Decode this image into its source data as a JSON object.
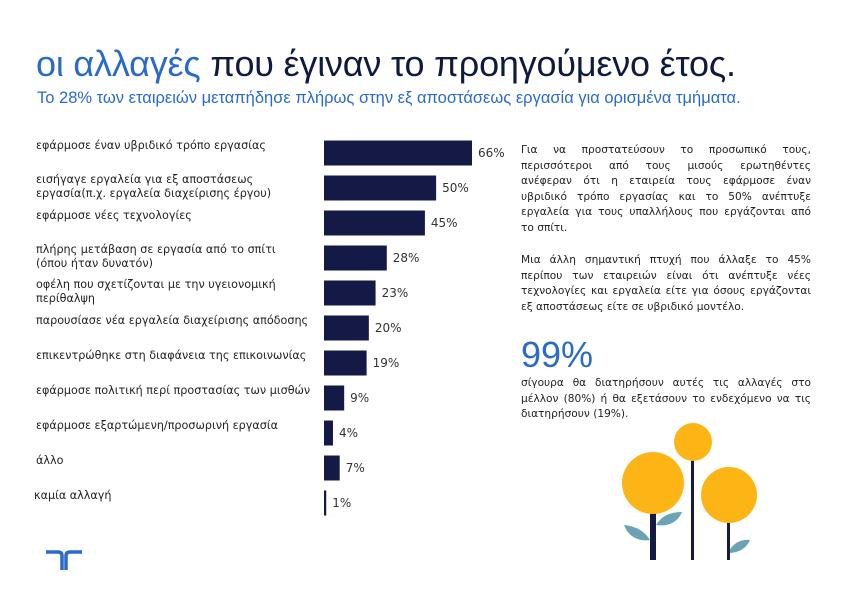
{
  "header": {
    "title_accent": "οι αλλαγές",
    "title_rest": " που έγιναν το προηγούμενο έτος.",
    "subtitle": "Το 28% των εταιρειών μεταπήδησε πλήρως στην εξ αποστάσεως εργασία για ορισμένα τμήματα."
  },
  "colors": {
    "bar": "#141a45",
    "accent": "#2a6ac8",
    "flower": "#fdb515",
    "leaf": "#6ba3b4"
  },
  "chart_data": {
    "type": "bar",
    "orientation": "horizontal",
    "title": "",
    "xlabel": "",
    "ylabel": "",
    "xlim": [
      0,
      100
    ],
    "categories": [
      [
        "εφάρμοσε έναν υβριδικό τρόπο εργασίας"
      ],
      [
        "εισήγαγε εργαλεία για εξ αποστάσεως",
        "εργασία(π.χ. εργαλεία διαχείρισης έργου)"
      ],
      [
        "εφάρμοσε νέες τεχνολογίες"
      ],
      [
        "πλήρης μετάβαση σε εργασία από το σπίτι",
        "(όπου ήταν δυνατόν)"
      ],
      [
        "οφέλη που σχετίζονται με την υγειονομική",
        "περίθαλψη"
      ],
      [
        "παρουσίασε νέα εργαλεία διαχείρισης απόδοσης"
      ],
      [
        "επικεντρώθηκε στη διαφάνεια της επικοινωνίας"
      ],
      [
        "εφάρμοσε πολιτική περί προστασίας των μισθών"
      ],
      [
        "εφάρμοσε εξαρτώμενη/προσωρινή εργασία"
      ],
      [
        "άλλο"
      ],
      [
        "καμία αλλαγή"
      ]
    ],
    "values": [
      66,
      50,
      45,
      28,
      23,
      20,
      19,
      9,
      4,
      7,
      1
    ],
    "value_labels": [
      "66%",
      "50%",
      "45%",
      "28%",
      "23%",
      "20%",
      "19%",
      "9%",
      "4%",
      "7%",
      "1%"
    ]
  },
  "side": {
    "para1": "Για να προστατεύσουν το προσωπικό τους, περισσότεροι από τους μισούς ερωτηθέντες ανέφεραν ότι η εταιρεία τους εφάρμοσε έναν υβριδικό τρόπο εργασίας και το 50% ανέπτυξε εργαλεία για τους υπαλλήλους που εργάζονται από το σπίτι.",
    "para2": "Μια άλλη σημαντική πτυχή που άλλαξε το 45% περίπου των εταιρειών είναι ότι ανέπτυξε νέες τεχνολογίες και εργαλεία είτε για όσους εργάζονται εξ αποστάσεως είτε σε υβριδικό μοντέλο.",
    "big_number": "99%",
    "para3": "σίγουρα θα διατηρήσουν αυτές τις αλλαγές στο μέλλον (80%) ή θα εξετάσουν το ενδεχόμενο να τις διατηρήσουν (19%)."
  }
}
